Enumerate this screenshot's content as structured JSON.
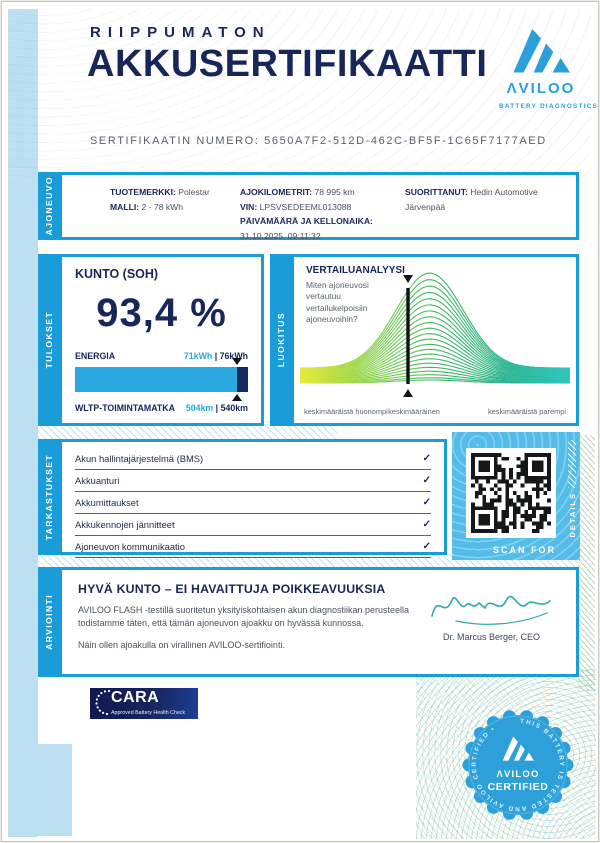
{
  "header": {
    "kicker": "RIIPPUMATON",
    "title": "AKKUSERTIFIKAATTI",
    "cert_label": "SERTIFIKAATIN NUMERO:",
    "cert_number": "5650A7F2-512D-462C-BF5F-1C65F7177AED"
  },
  "brand": {
    "name": "ΛVILOO",
    "tagline": "BATTERY DIAGNOSTICS"
  },
  "sections": {
    "vehicle": {
      "tab": "AJONEUVO",
      "brand_label": "TUOTEMERKKI:",
      "brand_value": "Polestar",
      "model_label": "MALLI:",
      "model_value": "2 - 78 kWh",
      "odometer_label": "AJOKILOMETRIT:",
      "odometer_value": "78 995 km",
      "vin_label": "VIN:",
      "vin_value": "LPSVSEDEEML013088",
      "datetime_label": "PÄIVÄMÄÄRÄ JA KELLONAIKA:",
      "datetime_value": "31.10.2025, 09:11:32",
      "performer_label": "SUORITTANUT:",
      "performer_value": "Hedin Automotive Järvenpää"
    },
    "results": {
      "tab": "TULOKSET",
      "soh_label": "KUNTO (SOH)",
      "soh_value": "93,4 %",
      "energy_label": "ENERGIA",
      "energy_current": "71kWh",
      "energy_sep": "|",
      "energy_original": "76kWh",
      "range_label": "WLTP-TOIMINTAMATKA",
      "range_current": "504km",
      "range_sep": "|",
      "range_original": "540km",
      "bar_percent": 93.4
    },
    "rating": {
      "tab": "LUOKITUS",
      "title": "VERTAILUANALYYSI",
      "subtitle": "Miten ajoneuvosi vertautuu vertailukelpoisiin ajoneuvoihin?"
    },
    "checks": {
      "tab": "TARKASTUKSET",
      "items": [
        {
          "label": "Akun hallintajärjestelmä (BMS)",
          "status": "✓"
        },
        {
          "label": "Akkuanturi",
          "status": "✓"
        },
        {
          "label": "Akkumittaukset",
          "status": "✓"
        },
        {
          "label": "Akkukennojen jännitteet",
          "status": "✓"
        },
        {
          "label": "Ajoneuvon kommunikaatio",
          "status": "✓"
        }
      ],
      "qr_caption_bottom": "SCAN FOR",
      "qr_caption_side": "DETAILS"
    },
    "assessment": {
      "tab": "ARVIOINTI",
      "title": "HYVÄ KUNTO – EI HAVAITTUJA POIKKEAVUUKSIA",
      "body1": "AVILOO FLASH -testillä suoritetun yksityiskohtaisen akun diagnostiikan perusteella todistamme täten, että tämän ajoneuvon ajoakku on hyvässä kunnossa.",
      "body2": "Näin ollen ajoakulla on virallinen AVILOO-sertifiointi.",
      "signatory": "Dr. Marcus Berger, CEO"
    }
  },
  "footer": {
    "cara_title": "CARA",
    "cara_subtitle": "Approved Battery Health Check",
    "badge_brand": "ΛVILOO",
    "badge_label": "CERTIFIED",
    "badge_ring_text": "THIS BATTERY IS TESTED AND AVILOO CERTIFIED •"
  },
  "chart_data": {
    "type": "area",
    "title": "VERTAILUANALYYSI",
    "description": "normal distribution of comparable vehicle battery health, vehicle marker slightly left of peak",
    "x_labels": [
      "keskimääräistä huonompi",
      "keskimääräinen",
      "keskimääräistä parempi"
    ],
    "marker_position": 0.4,
    "peak_position": 0.48,
    "sigma": 0.125,
    "num_contours": 22,
    "gradient": [
      "#e7ea3c",
      "#8fd44a",
      "#3cb85f",
      "#2db590",
      "#30c5c0"
    ],
    "legend": "off",
    "grid": "off"
  },
  "colors": {
    "navy": "#18265a",
    "accent_blue": "#1a9cd8",
    "bar_blue": "#29a9e0",
    "pale_blue": "#bcdff1",
    "signature_teal": "#2fa9a4",
    "cara_navy": "#15205b",
    "badge_blue": "#2d9fd9"
  }
}
